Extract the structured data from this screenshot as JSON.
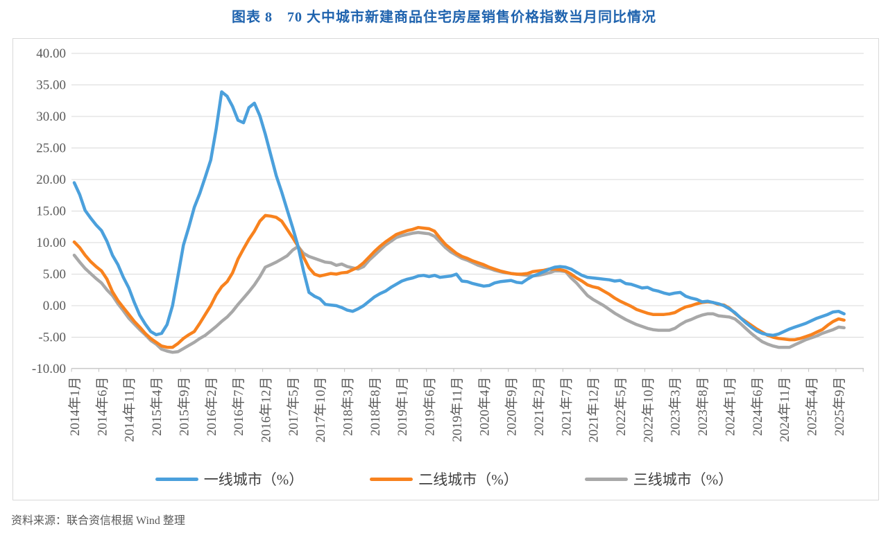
{
  "page": {
    "title": "图表 8　70 大中城市新建商品住宅房屋销售价格指数当月同比情况",
    "source": "资料来源：联合资信根据 Wind 整理"
  },
  "chart_data": {
    "type": "line",
    "title": "图表 8　70 大中城市新建商品住宅房屋销售价格指数当月同比情况",
    "x_axis": {
      "start": "2014年1月",
      "end": "2025年10月",
      "interval": "month",
      "count": 142
    },
    "x_tick_labels": [
      "2014年1月",
      "2014年6月",
      "2014年11月",
      "2015年4月",
      "2015年9月",
      "2016年2月",
      "2016年7月",
      "2016年12月",
      "2017年5月",
      "2017年10月",
      "2018年3月",
      "2018年8月",
      "2019年1月",
      "2019年6月",
      "2019年11月",
      "2020年4月",
      "2020年9月",
      "2021年2月",
      "2021年7月",
      "2021年12月",
      "2022年5月",
      "2022年10月",
      "2023年3月",
      "2023年8月",
      "2024年1月",
      "2024年6月",
      "2024年11月",
      "2025年4月",
      "2025年9月"
    ],
    "y_tick_labels": [
      "40.00",
      "35.00",
      "30.00",
      "25.00",
      "20.00",
      "15.00",
      "10.00",
      "5.00",
      "0.00",
      "-5.00",
      "-10.00"
    ],
    "y_tick_values": [
      40,
      35,
      30,
      25,
      20,
      15,
      10,
      5,
      0,
      -5,
      -10
    ],
    "ylim": [
      -10,
      40
    ],
    "ylabel": "",
    "xlabel": "",
    "grid": true,
    "legend_position": "bottom",
    "colors": {
      "grid": "#D9D9D9",
      "axis": "#C9C9C9",
      "tick_text": "#595959",
      "title": "#1F63AE"
    },
    "series": [
      {
        "name": "一线城市（%）",
        "color": "#4BA0DC",
        "values": [
          19.5,
          17.6,
          15.1,
          13.9,
          12.8,
          11.9,
          10.2,
          8.0,
          6.5,
          4.5,
          2.8,
          0.5,
          -1.5,
          -2.9,
          -4.1,
          -4.6,
          -4.4,
          -3.0,
          0.0,
          4.7,
          9.6,
          12.5,
          15.6,
          17.8,
          20.4,
          23.1,
          28.0,
          33.9,
          33.2,
          31.6,
          29.4,
          29.0,
          31.4,
          32.1,
          30.1,
          27.2,
          23.9,
          20.6,
          18.0,
          15.2,
          12.4,
          9.4,
          5.5,
          2.1,
          1.5,
          1.1,
          0.2,
          0.1,
          0.0,
          -0.3,
          -0.7,
          -0.9,
          -0.5,
          0.0,
          0.7,
          1.4,
          1.9,
          2.3,
          2.9,
          3.4,
          3.9,
          4.2,
          4.4,
          4.7,
          4.8,
          4.6,
          4.8,
          4.5,
          4.6,
          4.7,
          5.0,
          3.9,
          3.8,
          3.5,
          3.3,
          3.1,
          3.2,
          3.6,
          3.8,
          3.9,
          4.0,
          3.7,
          3.6,
          4.2,
          4.7,
          5.0,
          5.4,
          5.8,
          6.1,
          6.2,
          6.1,
          5.8,
          5.3,
          4.8,
          4.5,
          4.4,
          4.3,
          4.2,
          4.1,
          3.9,
          4.0,
          3.5,
          3.4,
          3.1,
          2.8,
          2.9,
          2.5,
          2.3,
          2.0,
          1.8,
          2.0,
          2.1,
          1.5,
          1.2,
          1.0,
          0.6,
          0.7,
          0.5,
          0.3,
          0.0,
          -0.5,
          -1.1,
          -1.9,
          -2.7,
          -3.4,
          -4.0,
          -4.4,
          -4.6,
          -4.7,
          -4.5,
          -4.1,
          -3.7,
          -3.4,
          -3.1,
          -2.8,
          -2.4,
          -2.0,
          -1.7,
          -1.4,
          -1.0,
          -0.9,
          -1.3
        ]
      },
      {
        "name": "二线城市（%）",
        "color": "#F8821E",
        "values": [
          10.1,
          9.2,
          8.0,
          7.0,
          6.2,
          5.5,
          4.2,
          2.2,
          0.8,
          -0.3,
          -1.4,
          -2.5,
          -3.4,
          -4.4,
          -5.2,
          -5.8,
          -6.4,
          -6.6,
          -6.6,
          -6.0,
          -5.2,
          -4.6,
          -4.1,
          -2.8,
          -1.4,
          0.0,
          1.7,
          3.0,
          3.8,
          5.2,
          7.4,
          9.0,
          10.5,
          11.8,
          13.4,
          14.3,
          14.2,
          14.0,
          13.4,
          12.1,
          10.8,
          9.4,
          7.7,
          6.0,
          5.0,
          4.7,
          4.9,
          5.1,
          5.0,
          5.2,
          5.3,
          5.7,
          6.1,
          6.8,
          7.7,
          8.6,
          9.4,
          10.1,
          10.7,
          11.3,
          11.6,
          11.9,
          12.1,
          12.4,
          12.3,
          12.2,
          11.8,
          10.7,
          9.7,
          9.0,
          8.3,
          7.8,
          7.5,
          7.1,
          6.8,
          6.5,
          6.1,
          5.8,
          5.5,
          5.3,
          5.1,
          5.0,
          5.0,
          5.1,
          5.4,
          5.5,
          5.6,
          5.8,
          5.8,
          5.7,
          5.5,
          5.0,
          4.4,
          3.9,
          3.3,
          3.0,
          2.8,
          2.3,
          1.8,
          1.2,
          0.7,
          0.3,
          -0.1,
          -0.6,
          -0.9,
          -1.2,
          -1.4,
          -1.4,
          -1.4,
          -1.3,
          -1.1,
          -0.6,
          -0.2,
          0.0,
          0.3,
          0.5,
          0.6,
          0.5,
          0.2,
          0.1,
          -0.4,
          -1.2,
          -1.9,
          -2.5,
          -3.1,
          -3.7,
          -4.2,
          -4.7,
          -5.0,
          -5.2,
          -5.3,
          -5.4,
          -5.4,
          -5.2,
          -4.9,
          -4.6,
          -4.2,
          -3.8,
          -3.1,
          -2.5,
          -2.1,
          -2.3
        ]
      },
      {
        "name": "三线城市（%）",
        "color": "#A8A8A8",
        "values": [
          8.0,
          6.9,
          5.9,
          5.1,
          4.3,
          3.6,
          2.5,
          1.6,
          0.3,
          -0.8,
          -2.0,
          -2.9,
          -3.8,
          -4.6,
          -5.5,
          -6.1,
          -6.9,
          -7.2,
          -7.4,
          -7.3,
          -6.8,
          -6.3,
          -5.8,
          -5.2,
          -4.7,
          -4.0,
          -3.3,
          -2.5,
          -1.8,
          -0.9,
          0.2,
          1.2,
          2.2,
          3.3,
          4.6,
          6.1,
          6.5,
          6.9,
          7.4,
          7.9,
          8.8,
          9.4,
          8.3,
          7.8,
          7.5,
          7.2,
          6.9,
          6.8,
          6.4,
          6.6,
          6.2,
          6.0,
          5.8,
          6.2,
          7.2,
          8.0,
          8.8,
          9.6,
          10.2,
          10.8,
          11.1,
          11.3,
          11.5,
          11.6,
          11.5,
          11.4,
          11.0,
          10.1,
          9.2,
          8.5,
          8.0,
          7.5,
          7.2,
          6.8,
          6.4,
          6.1,
          5.9,
          5.6,
          5.4,
          5.2,
          5.1,
          5.0,
          4.9,
          4.8,
          4.7,
          4.8,
          5.0,
          5.2,
          5.5,
          5.5,
          5.4,
          4.4,
          3.6,
          2.6,
          1.6,
          1.0,
          0.5,
          0.0,
          -0.6,
          -1.2,
          -1.7,
          -2.2,
          -2.6,
          -3.0,
          -3.3,
          -3.6,
          -3.8,
          -3.9,
          -3.9,
          -3.9,
          -3.6,
          -3.0,
          -2.5,
          -2.2,
          -1.8,
          -1.5,
          -1.3,
          -1.3,
          -1.6,
          -1.7,
          -1.8,
          -2.1,
          -2.8,
          -3.6,
          -4.4,
          -5.1,
          -5.7,
          -6.1,
          -6.4,
          -6.6,
          -6.6,
          -6.6,
          -6.2,
          -5.8,
          -5.4,
          -5.1,
          -4.8,
          -4.4,
          -4.1,
          -3.8,
          -3.4,
          -3.5
        ]
      }
    ]
  }
}
